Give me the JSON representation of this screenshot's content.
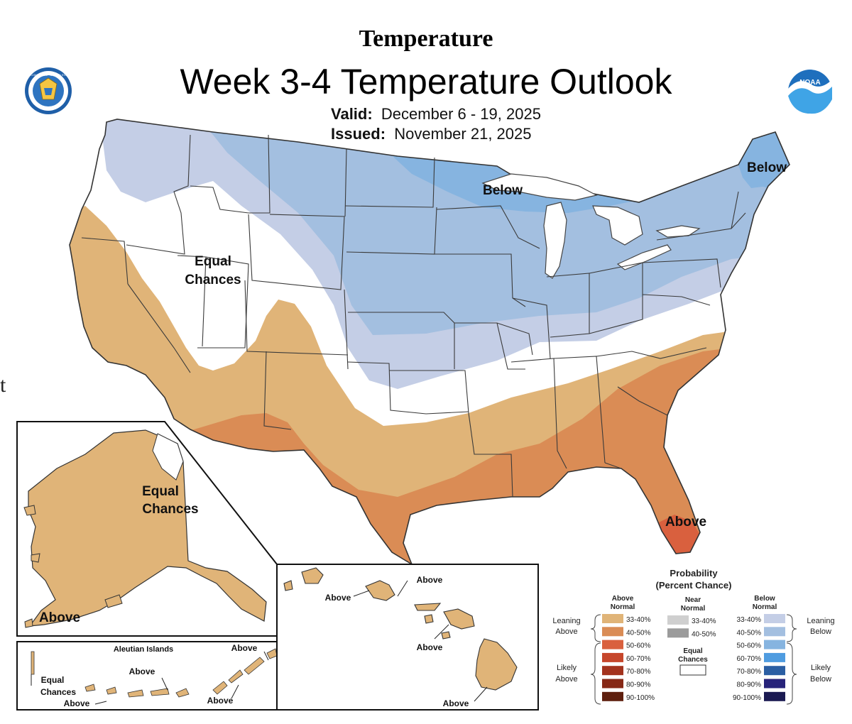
{
  "header": {
    "title": "Temperature",
    "main_title": "Week 3-4 Temperature Outlook",
    "valid_label": "Valid:",
    "valid_dates": "December 6 - 19, 2025",
    "issued_label": "Issued:",
    "issued_date": "November 21, 2025"
  },
  "logos": {
    "commerce_seal": {
      "ring_text": "DEPARTMENT OF COMMERCE · UNITED STATES OF AMERICA"
    },
    "noaa_logo": {
      "text": "NOAA"
    }
  },
  "colors": {
    "above_33_40": "#E0B478",
    "above_40_50": "#DA8C55",
    "above_50_60": "#D9603E",
    "above_60_70": "#C6462B",
    "above_70_80": "#A3331E",
    "above_80_90": "#862816",
    "above_90_100": "#5E1F0E",
    "near_33_40": "#CFCFCF",
    "near_40_50": "#9B9B9B",
    "equal": "#FFFFFF",
    "below_33_40": "#C4CEE6",
    "below_40_50": "#A3BFE0",
    "below_50_60": "#86B4E0",
    "below_60_70": "#4F9CE0",
    "below_70_80": "#2B5FA3",
    "below_80_90": "#27237A",
    "below_90_100": "#1B1A52",
    "water": "#FFFFFF",
    "border": "#333333"
  },
  "map_labels": {
    "conus_equal_line1": "Equal",
    "conus_equal_line2": "Chances",
    "conus_below_west": "Below",
    "conus_below_ne": "Below",
    "conus_above_fl": "Above",
    "ak_equal_line1": "Equal",
    "ak_equal_line2": "Chances",
    "ak_above": "Above",
    "aleutian_title": "Aleutian Islands",
    "aleutian_equal_line1": "Equal",
    "aleutian_equal_line2": "Chances",
    "aleutian_above_1": "Above",
    "aleutian_above_2": "Above",
    "aleutian_above_3": "Above",
    "aleutian_above_4": "Above",
    "hi_above_1": "Above",
    "hi_above_2": "Above",
    "hi_above_3": "Above",
    "hi_above_4": "Above",
    "left_edge_glyph": "t"
  },
  "legend": {
    "title_line1": "Probability",
    "title_line2": "(Percent Chance)",
    "above_header_line1": "Above",
    "above_header_line2": "Normal",
    "near_header_line1": "Near",
    "near_header_line2": "Normal",
    "below_header_line1": "Below",
    "below_header_line2": "Normal",
    "above_ranges": [
      "33-40%",
      "40-50%",
      "50-60%",
      "60-70%",
      "70-80%",
      "80-90%",
      "90-100%"
    ],
    "near_ranges": [
      "33-40%",
      "40-50%"
    ],
    "below_ranges": [
      "33-40%",
      "40-50%",
      "50-60%",
      "60-70%",
      "70-80%",
      "80-90%",
      "90-100%"
    ],
    "equal_line1": "Equal",
    "equal_line2": "Chances",
    "leaning_above_line1": "Leaning",
    "leaning_above_line2": "Above",
    "likely_above_line1": "Likely",
    "likely_above_line2": "Above",
    "leaning_below_line1": "Leaning",
    "leaning_below_line2": "Below",
    "likely_below_line1": "Likely",
    "likely_below_line2": "Below"
  }
}
